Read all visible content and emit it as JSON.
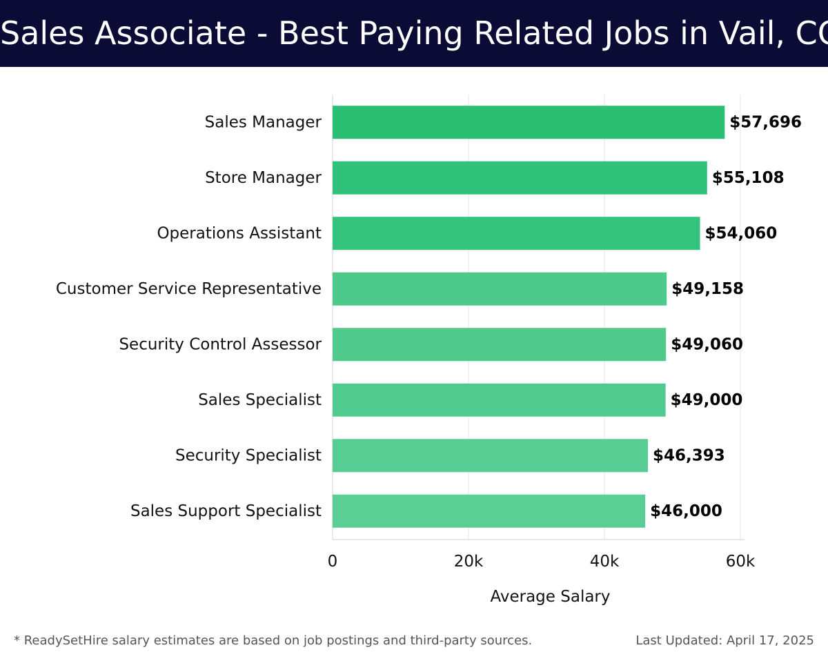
{
  "header": {
    "title": "Sales Associate - Best Paying Related Jobs in Vail, CO"
  },
  "chart_data": {
    "type": "bar",
    "orientation": "horizontal",
    "categories": [
      "Sales Manager",
      "Store Manager",
      "Operations Assistant",
      "Customer Service Representative",
      "Security Control Assessor",
      "Sales Specialist",
      "Security Specialist",
      "Sales Support Specialist"
    ],
    "values": [
      57696,
      55108,
      54060,
      49158,
      49060,
      49000,
      46393,
      46000
    ],
    "value_labels": [
      "$57,696",
      "$55,108",
      "$54,060",
      "$49,158",
      "$49,060",
      "$49,000",
      "$46,393",
      "$46,000"
    ],
    "xlabel": "Average Salary",
    "ylabel": "",
    "xlim": [
      0,
      60000
    ],
    "x_ticks": [
      0,
      20000,
      40000,
      60000
    ],
    "x_tick_labels": [
      "0",
      "20k",
      "40k",
      "60k"
    ],
    "grid": "vertical",
    "legend": "none",
    "bar_colors": [
      "#2bbf74",
      "#30c27a",
      "#33c37c",
      "#4ec98c",
      "#4fc98c",
      "#50ca8e",
      "#58cd93",
      "#5ace95"
    ],
    "grid_color": "#e6e6e6",
    "axis_color": "#d0d0d0"
  },
  "footer": {
    "note": "* ReadySetHire salary estimates are based on job postings and third-party sources.",
    "updated": "Last Updated: April 17, 2025"
  }
}
